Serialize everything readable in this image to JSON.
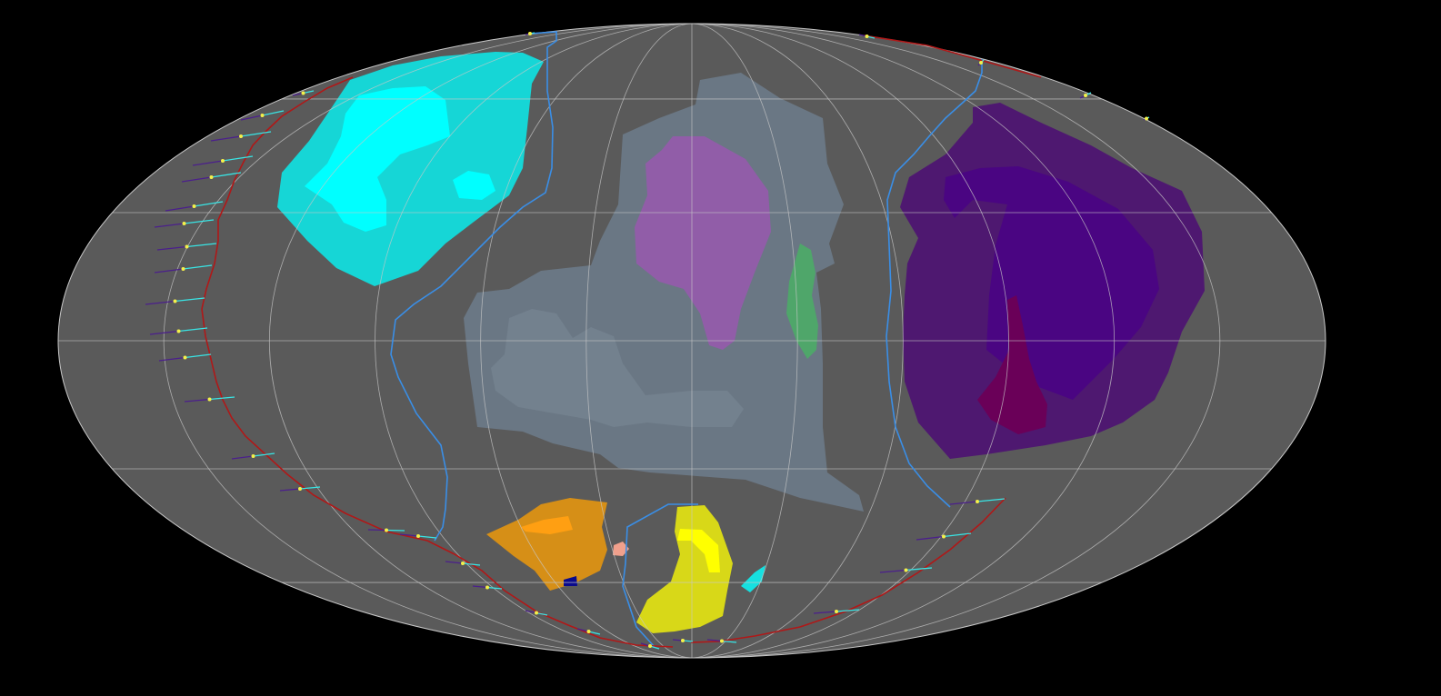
{
  "map": {
    "projection": "mollweide",
    "background_color": "#000000",
    "ocean_color": "#5a5a5a",
    "graticule_color": "#c8c8c8",
    "boundary_colors": {
      "plate_boundary": "#3a8ee6",
      "subduction_zone": "#b01818",
      "velocity_vector_tail": "#4b1f8c",
      "velocity_vector_head": "#39e5e5",
      "velocity_vector_point": "#f4f04a"
    },
    "landmasses": [
      {
        "name": "cyan-craton",
        "color": "#16d6d6"
      },
      {
        "name": "cyan-core",
        "color": "#00ffff"
      },
      {
        "name": "grey-continent",
        "color": "#6a7784"
      },
      {
        "name": "grey-core",
        "color": "#73818e"
      },
      {
        "name": "violet-block",
        "color": "#915da8"
      },
      {
        "name": "green-sliver",
        "color": "#4fa66a"
      },
      {
        "name": "purple-continent",
        "color": "#4e1870"
      },
      {
        "name": "indigo-core",
        "color": "#4a0582"
      },
      {
        "name": "magenta-block",
        "color": "#6a0058"
      },
      {
        "name": "orange-block",
        "color": "#d68f17"
      },
      {
        "name": "orange-core",
        "color": "#ff9f12"
      },
      {
        "name": "navy-fragment",
        "color": "#0a0a8c"
      },
      {
        "name": "salmon-fragment",
        "color": "#f0a08c"
      },
      {
        "name": "yellow-block",
        "color": "#d8d818"
      },
      {
        "name": "yellow-core",
        "color": "#ffff00"
      },
      {
        "name": "cyan-fragment",
        "color": "#16e0e0"
      }
    ]
  }
}
